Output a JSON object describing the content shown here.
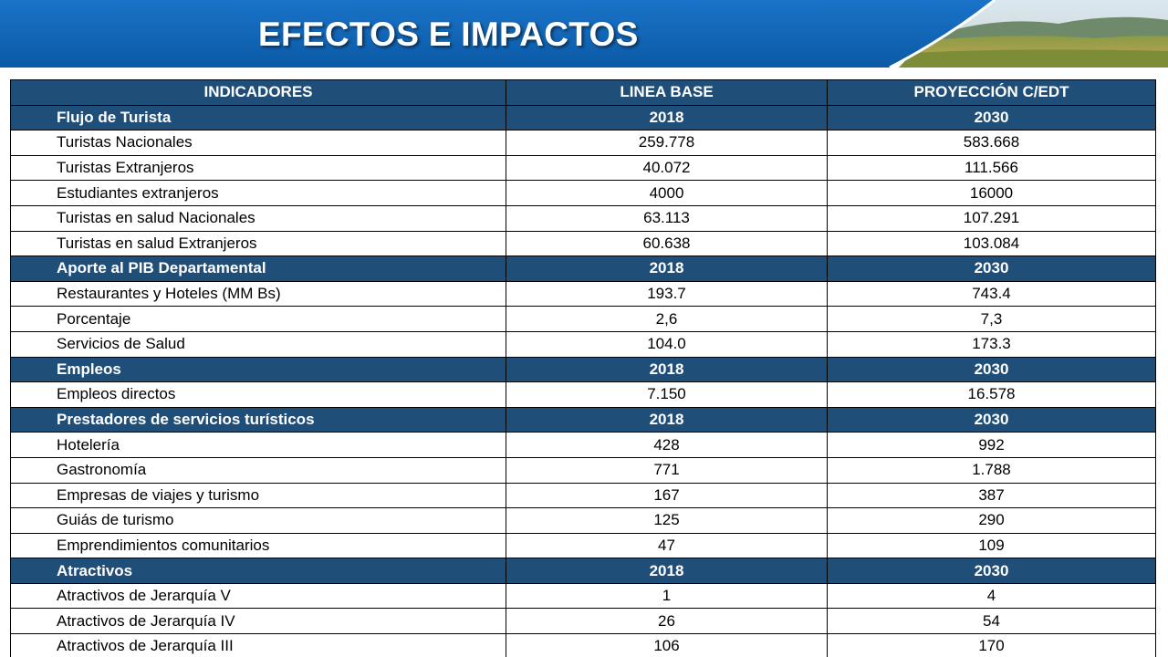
{
  "slide": {
    "title": "EFECTOS E IMPACTOS"
  },
  "colors": {
    "banner_blue": "#0a62b4",
    "header_fill": "#1f4e79",
    "header_text": "#ffffff",
    "grid": "#000000"
  },
  "table": {
    "headers": [
      "INDICADORES",
      "LINEA BASE",
      "PROYECCIÓN C/EDT"
    ],
    "rows": [
      {
        "kind": "section",
        "label": "Flujo de Turista",
        "base": "2018",
        "proj": "2030"
      },
      {
        "kind": "data",
        "label": "Turistas Nacionales",
        "base": "259.778",
        "proj": "583.668"
      },
      {
        "kind": "data",
        "label": "Turistas Extranjeros",
        "base": "40.072",
        "proj": "111.566"
      },
      {
        "kind": "data",
        "label": "Estudiantes extranjeros",
        "base": "4000",
        "proj": "16000"
      },
      {
        "kind": "data",
        "label": "Turistas en salud Nacionales",
        "base": "63.113",
        "proj": "107.291"
      },
      {
        "kind": "data",
        "label": "Turistas en salud Extranjeros",
        "base": "60.638",
        "proj": "103.084"
      },
      {
        "kind": "section",
        "label": "Aporte al PIB Departamental",
        "base": "2018",
        "proj": "2030"
      },
      {
        "kind": "data",
        "label": "Restaurantes y Hoteles (MM Bs)",
        "base": "193.7",
        "proj": "743.4"
      },
      {
        "kind": "data",
        "label": "Porcentaje",
        "base": "2,6",
        "proj": "7,3"
      },
      {
        "kind": "data",
        "label": "Servicios de Salud",
        "base": "104.0",
        "proj": "173.3"
      },
      {
        "kind": "section",
        "label": "Empleos",
        "base": "2018",
        "proj": "2030"
      },
      {
        "kind": "data",
        "label": "Empleos directos",
        "base": "7.150",
        "proj": "16.578"
      },
      {
        "kind": "section",
        "label": "Prestadores de servicios turísticos",
        "base": "2018",
        "proj": "2030"
      },
      {
        "kind": "data",
        "label": "Hotelería",
        "base": "428",
        "proj": "992"
      },
      {
        "kind": "data",
        "label": "Gastronomía",
        "base": "771",
        "proj": "1.788"
      },
      {
        "kind": "data",
        "label": "Empresas de viajes y turismo",
        "base": "167",
        "proj": "387"
      },
      {
        "kind": "data",
        "label": "Guiás de turismo",
        "base": "125",
        "proj": "290"
      },
      {
        "kind": "data",
        "label": "Emprendimientos comunitarios",
        "base": "47",
        "proj": "109"
      },
      {
        "kind": "section",
        "label": "Atractivos",
        "base": "2018",
        "proj": "2030"
      },
      {
        "kind": "data",
        "label": "Atractivos de Jerarquía V",
        "base": "1",
        "proj": "4"
      },
      {
        "kind": "data",
        "label": "Atractivos de Jerarquía IV",
        "base": "26",
        "proj": "54"
      },
      {
        "kind": "data",
        "label": "Atractivos de Jerarquía III",
        "base": "106",
        "proj": "170"
      }
    ]
  }
}
